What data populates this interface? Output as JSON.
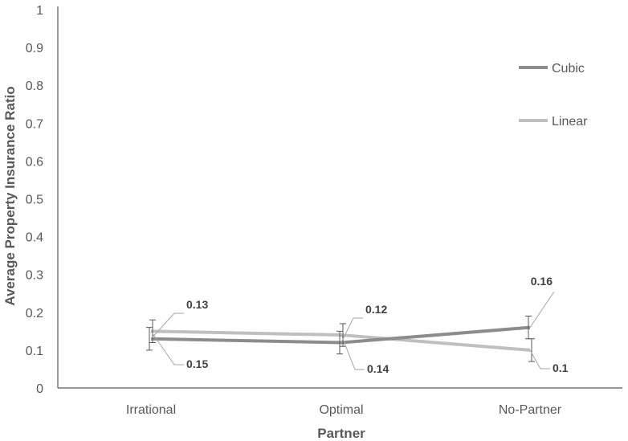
{
  "chart_data": {
    "type": "line",
    "title": "",
    "xlabel": "Partner",
    "ylabel": "Average Property Insurance Ratio",
    "categories": [
      "Irrational",
      "Optimal",
      "No-Partner"
    ],
    "ylim": [
      0,
      1
    ],
    "yticks": [
      "0",
      "0.1",
      "0.2",
      "0.3",
      "0.4",
      "0.5",
      "0.6",
      "0.7",
      "0.8",
      "0.9",
      "1"
    ],
    "grid": false,
    "legend_position": "top-right",
    "series": [
      {
        "name": "Cubic",
        "color": "#8c8c8c",
        "values": [
          0.13,
          0.12,
          0.16
        ],
        "labels": [
          "0.13",
          "0.12",
          "0.16"
        ],
        "error": [
          0.03,
          0.03,
          0.03
        ]
      },
      {
        "name": "Linear",
        "color": "#bfbfbf",
        "values": [
          0.15,
          0.14,
          0.1
        ],
        "labels": [
          "0.15",
          "0.14",
          "0.1"
        ],
        "error": [
          0.03,
          0.03,
          0.03
        ]
      }
    ]
  }
}
